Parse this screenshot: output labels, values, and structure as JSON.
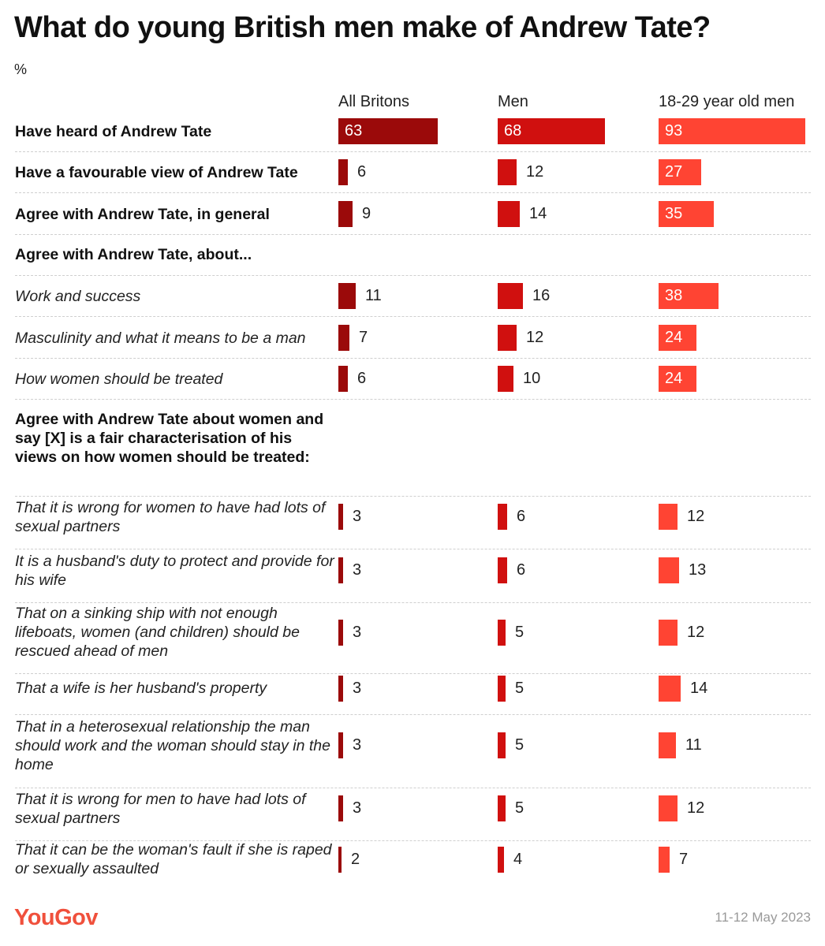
{
  "header": {
    "title": "What do young British men make of Andrew Tate?",
    "unit": "%"
  },
  "footer": {
    "brand": "YouGov",
    "date": "11-12 May 2023"
  },
  "chart_data": {
    "type": "bar",
    "title": "What do young British men make of Andrew Tate?",
    "unit": "%",
    "xlim": [
      0,
      100
    ],
    "colors": [
      "#9b0a0a",
      "#d0100f",
      "#ff4433"
    ],
    "series": [
      {
        "name": "All Britons",
        "values": [
          63,
          6,
          9,
          null,
          11,
          7,
          6,
          null,
          3,
          3,
          3,
          3,
          3,
          3,
          2
        ]
      },
      {
        "name": "Men",
        "values": [
          68,
          12,
          14,
          null,
          16,
          12,
          10,
          null,
          6,
          6,
          5,
          5,
          5,
          5,
          4
        ]
      },
      {
        "name": "18-29 year old men",
        "values": [
          93,
          27,
          35,
          null,
          38,
          24,
          24,
          null,
          12,
          13,
          12,
          14,
          11,
          12,
          7
        ]
      }
    ],
    "categories": [
      {
        "label": "Have heard of Andrew Tate",
        "style": "bold"
      },
      {
        "label": "Have a favourable view of Andrew Tate",
        "style": "bold"
      },
      {
        "label": "Agree with Andrew Tate, in general",
        "style": "bold"
      },
      {
        "label": "Agree with Andrew Tate, about...",
        "style": "section"
      },
      {
        "label": "Work and success",
        "style": "italic"
      },
      {
        "label": "Masculinity and what it means to be a man",
        "style": "italic"
      },
      {
        "label": "How women should be treated",
        "style": "italic"
      },
      {
        "label": "Agree with Andrew Tate about women and say [X] is a fair characterisation of his views on how women should be treated:",
        "style": "section"
      },
      {
        "label": "That it is wrong for women to have had lots of sexual partners",
        "style": "italic"
      },
      {
        "label": "It is a husband's duty to protect and provide for his wife",
        "style": "italic"
      },
      {
        "label": "That on a sinking ship with not enough lifeboats, women (and children) should be rescued ahead of men",
        "style": "italic"
      },
      {
        "label": "That a wife is her husband's property",
        "style": "italic"
      },
      {
        "label": "That in a heterosexual relationship the man should work and the woman should stay in the home",
        "style": "italic"
      },
      {
        "label": "That it is wrong for men to have had lots of sexual partners",
        "style": "italic"
      },
      {
        "label": "That it can be the woman's fault if she is raped or sexually assaulted",
        "style": "italic"
      }
    ]
  }
}
